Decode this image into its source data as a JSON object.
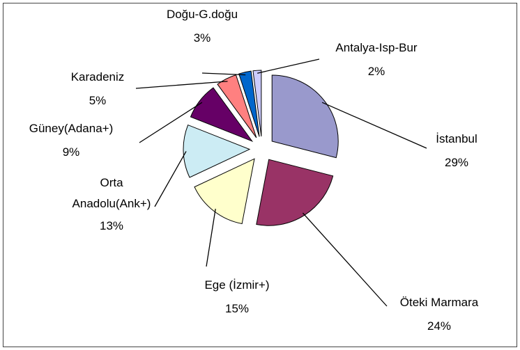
{
  "chart_data": {
    "type": "pie",
    "categories": [
      "İstanbul",
      "Öteki Marmara",
      "Ege (İzmir+)",
      "Orta Anadolu(Ank+)",
      "Güney(Adana+)",
      "Karadeniz",
      "Doğu-G.doğu",
      "Antalya-Isp-Bur"
    ],
    "values": [
      29,
      24,
      15,
      13,
      9,
      5,
      3,
      2
    ],
    "value_labels": [
      "29%",
      "24%",
      "15%",
      "13%",
      "9%",
      "5%",
      "3%",
      "2%"
    ],
    "colors": [
      "#9999cc",
      "#993366",
      "#ffffcc",
      "#ccecf4",
      "#660066",
      "#ff8080",
      "#0066cc",
      "#ccccff"
    ]
  }
}
